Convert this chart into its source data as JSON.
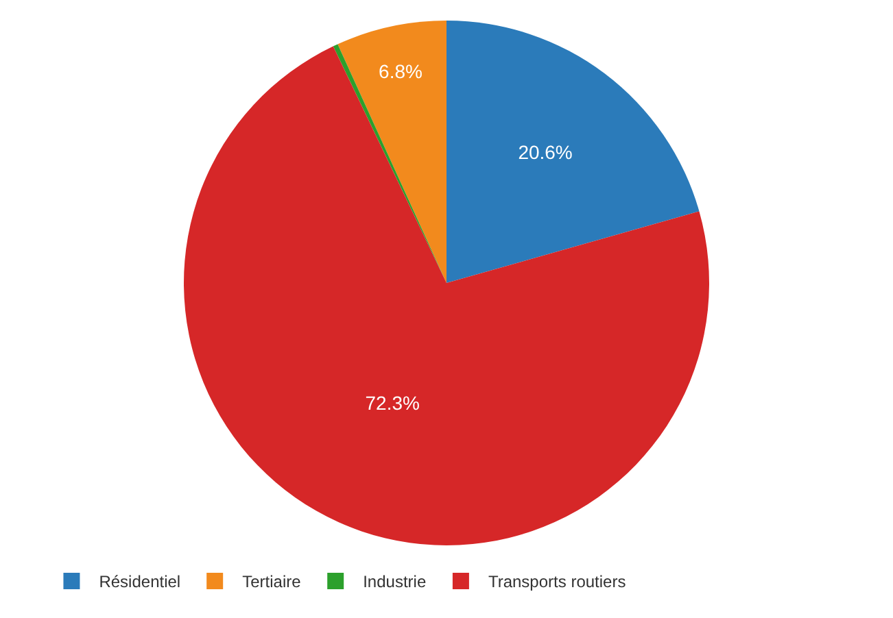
{
  "chart_data": {
    "type": "pie",
    "categories": [
      "Résidentiel",
      "Tertiaire",
      "Industrie",
      "Transports routiers"
    ],
    "values": [
      20.6,
      6.8,
      0.3,
      72.3
    ],
    "colors": [
      "#2b7bba",
      "#f28a1d",
      "#2ca02c",
      "#d62728"
    ],
    "value_labels": [
      "20.6%",
      "6.8%",
      null,
      "72.3%"
    ],
    "legend": "bottom"
  }
}
